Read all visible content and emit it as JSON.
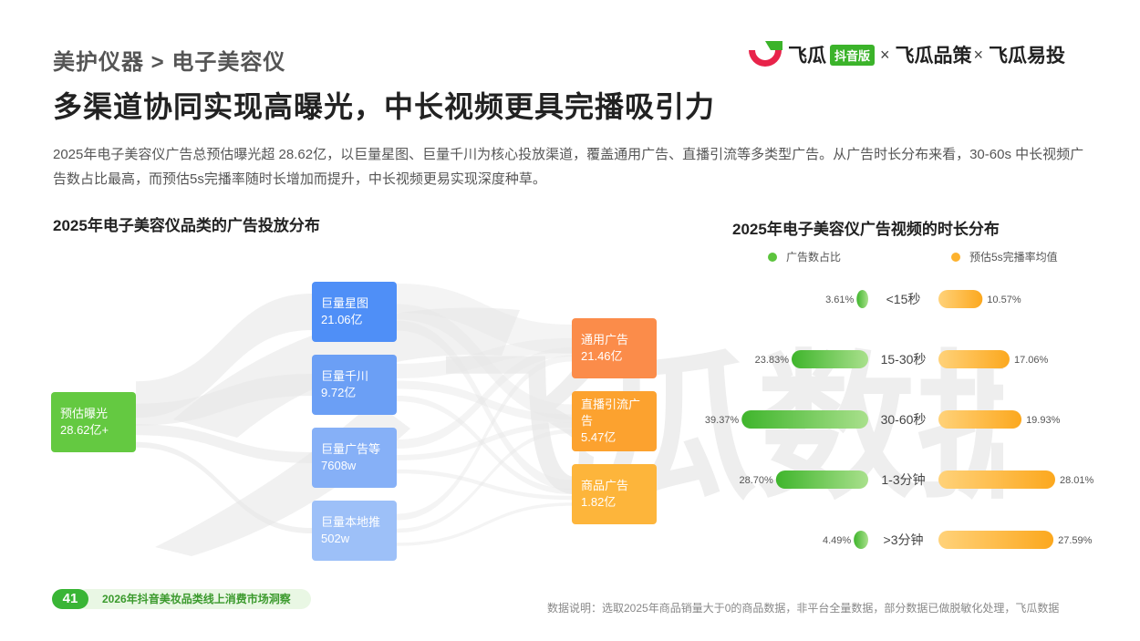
{
  "breadcrumb": "美护仪器 > 电子美容仪",
  "title": "多渠道协同实现高曝光，中长视频更具完播吸引力",
  "intro": "2025年电子美容仪广告总预估曝光超  28.62亿，以巨量星图、巨量千川为核心投放渠道，覆盖通用广告、直播引流等多类型广告。从广告时长分布来看，30-60s 中长视频广告数占比最高，而预估5s完播率随时长增加而提升，中长视频更易实现深度种草。",
  "logo": {
    "brand": "飞瓜",
    "badge": "抖音版",
    "sep1": "×",
    "brand2": "飞瓜品策",
    "sep2": "×",
    "brand3": "飞瓜易投"
  },
  "watermark_text": "飞瓜数据",
  "colors": {
    "green": "#5cc43d",
    "orange": "#fdb22e",
    "accent_green": "#39b535"
  },
  "chart_data": [
    {
      "type": "sankey",
      "title": "2025年电子美容仪品类的广告投放分布",
      "nodes": [
        {
          "id": "source",
          "label": "预估曝光",
          "value_label": "28.62亿+",
          "color": "#64c941"
        },
        {
          "id": "xingtu",
          "label": "巨量星图",
          "value_label": "21.06亿",
          "color": "#4f8ff7"
        },
        {
          "id": "qianchuan",
          "label": "巨量千川",
          "value_label": "9.72亿",
          "color": "#6b9ff5"
        },
        {
          "id": "guanggao",
          "label": "巨量广告等",
          "value_label": "7608w",
          "color": "#86b0f7"
        },
        {
          "id": "bendi",
          "label": "巨量本地推",
          "value_label": "502w",
          "color": "#9dc0f8"
        },
        {
          "id": "tongyong",
          "label": "通用广告",
          "value_label": "21.46亿",
          "color": "#fb8c4a"
        },
        {
          "id": "zhibo",
          "label": "直播引流广告",
          "value_label": "5.47亿",
          "color": "#fca22f"
        },
        {
          "id": "shangpin",
          "label": "商品广告",
          "value_label": "1.82亿",
          "color": "#fdb53b"
        }
      ]
    },
    {
      "type": "bar",
      "title": "2025年电子美容仪广告视频的时长分布",
      "legend_position": "top",
      "categories": [
        "<15秒",
        "15-30秒",
        "30-60秒",
        "1-3分钟",
        ">3分钟"
      ],
      "series": [
        {
          "name": "广告数占比",
          "color": "#5cc43d",
          "values": [
            3.61,
            23.83,
            39.37,
            28.7,
            4.49
          ],
          "labels": [
            "3.61%",
            "23.83%",
            "39.37%",
            "28.70%",
            "4.49%"
          ]
        },
        {
          "name": "预估5s完播率均值",
          "color": "#fdb22e",
          "values": [
            10.57,
            17.06,
            19.93,
            28.01,
            27.59
          ],
          "labels": [
            "10.57%",
            "17.06%",
            "19.93%",
            "28.01%",
            "27.59%"
          ]
        }
      ]
    }
  ],
  "footer": {
    "page": "41",
    "report": "2026年抖音美妆品类线上消费市场洞察",
    "note": "数据说明：选取2025年商品销量大于0的商品数据，非平台全量数据，部分数据已做脱敏化处理，飞瓜数据"
  }
}
